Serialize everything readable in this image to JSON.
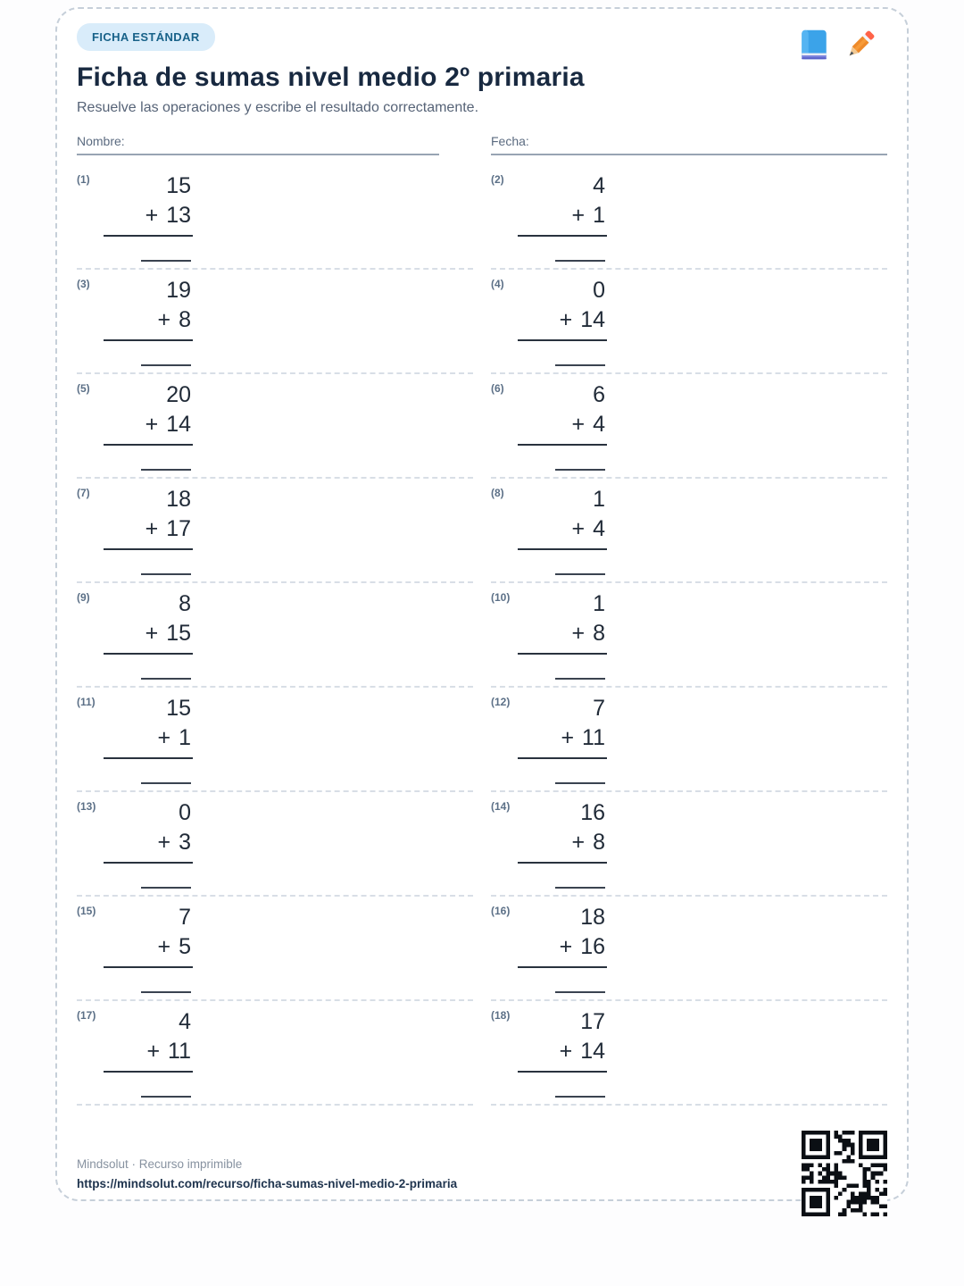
{
  "badge": "FICHA ESTÁNDAR",
  "title": "Ficha de sumas nivel medio 2º primaria",
  "subtitle": "Resuelve las operaciones y escribe el resultado correctamente.",
  "fields": {
    "name_label": "Nombre:",
    "date_label": "Fecha:"
  },
  "problems": [
    {
      "label": "(1)",
      "a": "15",
      "op": "+",
      "b": "13"
    },
    {
      "label": "(2)",
      "a": "4",
      "op": "+",
      "b": "1"
    },
    {
      "label": "(3)",
      "a": "19",
      "op": "+",
      "b": "8"
    },
    {
      "label": "(4)",
      "a": "0",
      "op": "+",
      "b": "14"
    },
    {
      "label": "(5)",
      "a": "20",
      "op": "+",
      "b": "14"
    },
    {
      "label": "(6)",
      "a": "6",
      "op": "+",
      "b": "4"
    },
    {
      "label": "(7)",
      "a": "18",
      "op": "+",
      "b": "17"
    },
    {
      "label": "(8)",
      "a": "1",
      "op": "+",
      "b": "4"
    },
    {
      "label": "(9)",
      "a": "8",
      "op": "+",
      "b": "15"
    },
    {
      "label": "(10)",
      "a": "1",
      "op": "+",
      "b": "8"
    },
    {
      "label": "(11)",
      "a": "15",
      "op": "+",
      "b": "1"
    },
    {
      "label": "(12)",
      "a": "7",
      "op": "+",
      "b": "11"
    },
    {
      "label": "(13)",
      "a": "0",
      "op": "+",
      "b": "3"
    },
    {
      "label": "(14)",
      "a": "16",
      "op": "+",
      "b": "8"
    },
    {
      "label": "(15)",
      "a": "7",
      "op": "+",
      "b": "5"
    },
    {
      "label": "(16)",
      "a": "18",
      "op": "+",
      "b": "16"
    },
    {
      "label": "(17)",
      "a": "4",
      "op": "+",
      "b": "11"
    },
    {
      "label": "(18)",
      "a": "17",
      "op": "+",
      "b": "14"
    }
  ],
  "footer": {
    "brand": "Mindsolut · Recurso imprimible",
    "url": "https://mindsolut.com/recurso/ficha-sumas-nivel-medio-2-primaria"
  },
  "icons": {
    "book": "book-icon",
    "pencil": "pencil-icon",
    "qr": "qr-code"
  },
  "colors": {
    "badge_bg": "#d9ecfa",
    "badge_text": "#186289",
    "title": "#182940",
    "subtitle": "#566377",
    "number": "#212b38",
    "card_dash": "#c6cfd9",
    "url": "#20354f"
  }
}
